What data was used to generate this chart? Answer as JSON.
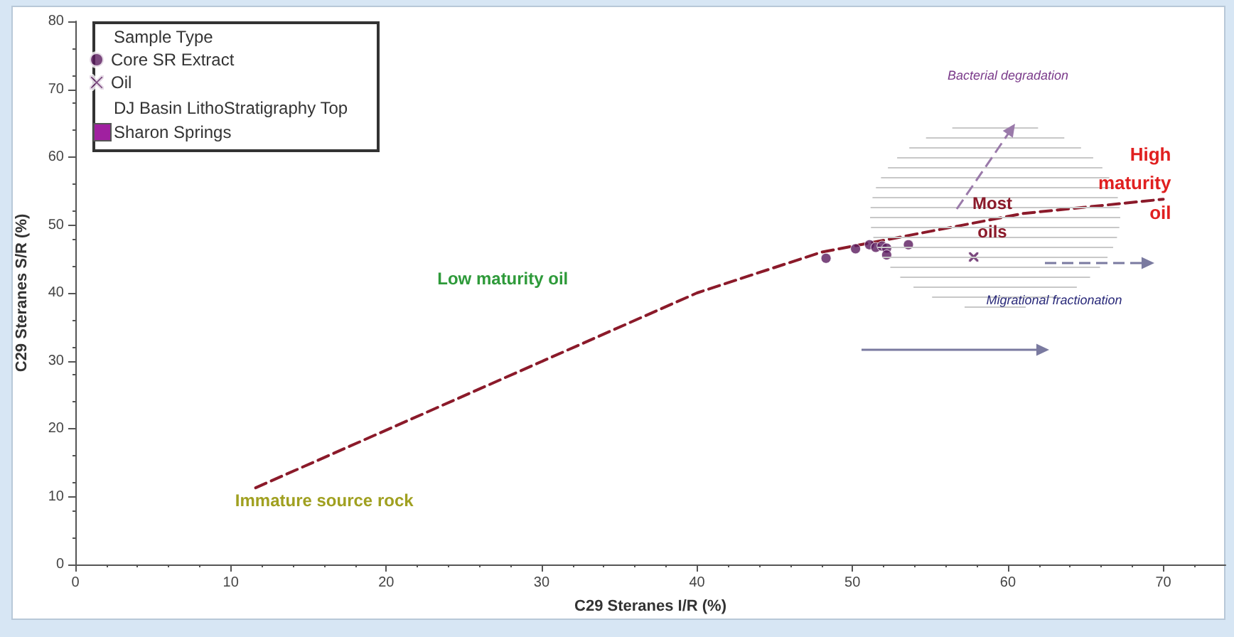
{
  "chart_data": {
    "type": "scatter",
    "xlabel": "C29 Steranes I/R (%)",
    "ylabel": "C29 Steranes S/R (%)",
    "legend_title": "Sample Type",
    "xlim": [
      0,
      74
    ],
    "xticks": [
      0,
      10,
      20,
      30,
      40,
      50,
      60,
      70
    ],
    "ylim": [
      0,
      80
    ],
    "yticks": [
      0,
      10,
      20,
      30,
      40,
      50,
      60,
      70,
      80
    ],
    "grid": false,
    "legend": "top left",
    "series": [
      {
        "name": "Core SR Extract",
        "marker": "circle",
        "color": "#5a1a5e",
        "x": [
          48.3,
          50.2,
          51.1,
          51.5,
          51.9,
          52.2,
          52.2,
          53.6
        ],
        "values": [
          45.1,
          46.5,
          47.1,
          46.7,
          46.9,
          46.6,
          45.6,
          47.1
        ]
      },
      {
        "name": "Oil",
        "marker": "cross",
        "color": "#5a1a5e",
        "x": [
          57.8
        ],
        "values": [
          45.3
        ]
      },
      {
        "type": "line",
        "line_style": "dashed",
        "marker": "none",
        "color": "#8b1a2a",
        "x": [
          11.6,
          40.0,
          48.0,
          61.0,
          70.0
        ],
        "values": [
          11.3,
          40.0,
          46.0,
          51.7,
          53.8
        ]
      }
    ],
    "annotations": [
      "DJ Basin LithoStratigraphy Top",
      "Sharon Springs",
      "Bacterial degradation",
      "Most oils",
      "High maturity oil",
      "Low maturity oil",
      "Immature source rock",
      "Migrational fractionation"
    ]
  }
}
